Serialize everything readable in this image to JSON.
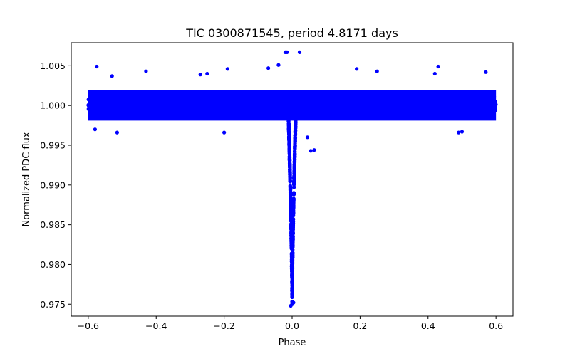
{
  "chart_data": {
    "type": "scatter",
    "title": "TIC 0300871545, period 4.8171 days",
    "xlabel": "Phase",
    "ylabel": "Normalized PDC flux",
    "xlim": [
      -0.65,
      0.65
    ],
    "ylim": [
      0.9735,
      1.0079
    ],
    "x_ticks": [
      -0.6,
      -0.4,
      -0.2,
      0.0,
      0.2,
      0.4,
      0.6
    ],
    "x_tick_labels": [
      "−0.6",
      "−0.4",
      "−0.2",
      "0.0",
      "0.2",
      "0.4",
      "0.6"
    ],
    "y_ticks": [
      0.975,
      0.98,
      0.985,
      0.99,
      0.995,
      1.0,
      1.005
    ],
    "y_tick_labels": [
      "0.975",
      "0.980",
      "0.985",
      "0.990",
      "0.995",
      "1.000",
      "1.005"
    ],
    "grid": false,
    "marker_color": "#0000ff",
    "series": [
      {
        "phase_range": [
          -0.6,
          0.6
        ],
        "baseline_flux": 1.0,
        "scatter_band": [
          0.9975,
          1.0025
        ],
        "transit": {
          "center_phase": 0.0,
          "min_flux": 0.9748,
          "half_width_phase": 0.012
        },
        "points": [
          {
            "x": -0.575,
            "y": 1.0049
          },
          {
            "x": -0.53,
            "y": 1.0037
          },
          {
            "x": -0.43,
            "y": 1.0043
          },
          {
            "x": -0.27,
            "y": 1.0039
          },
          {
            "x": -0.25,
            "y": 1.004
          },
          {
            "x": -0.19,
            "y": 1.0046
          },
          {
            "x": -0.07,
            "y": 1.0047
          },
          {
            "x": -0.04,
            "y": 1.0051
          },
          {
            "x": -0.02,
            "y": 1.0067
          },
          {
            "x": -0.015,
            "y": 1.0067
          },
          {
            "x": 0.022,
            "y": 1.0067
          },
          {
            "x": 0.19,
            "y": 1.0046
          },
          {
            "x": 0.25,
            "y": 1.0043
          },
          {
            "x": 0.42,
            "y": 1.004
          },
          {
            "x": 0.43,
            "y": 1.0049
          },
          {
            "x": 0.57,
            "y": 1.0042
          },
          {
            "x": -0.58,
            "y": 0.997
          },
          {
            "x": -0.515,
            "y": 0.9966
          },
          {
            "x": -0.2,
            "y": 0.9966
          },
          {
            "x": 0.045,
            "y": 0.996
          },
          {
            "x": 0.055,
            "y": 0.9943
          },
          {
            "x": 0.065,
            "y": 0.9944
          },
          {
            "x": 0.49,
            "y": 0.9966
          },
          {
            "x": 0.5,
            "y": 0.9967
          },
          {
            "x": -0.004,
            "y": 0.9748
          },
          {
            "x": 0.0,
            "y": 0.975
          },
          {
            "x": 0.004,
            "y": 0.9752
          }
        ]
      }
    ]
  }
}
